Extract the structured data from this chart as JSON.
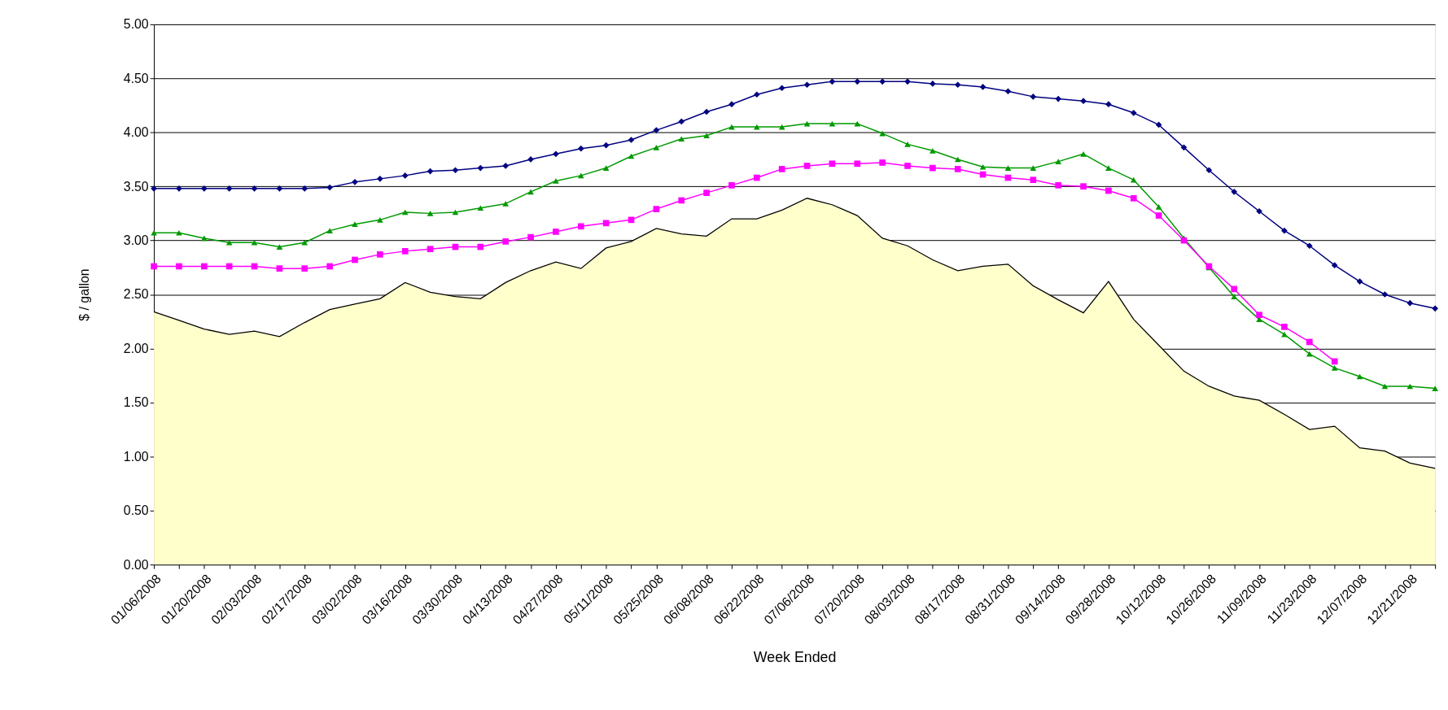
{
  "chart_data": {
    "type": "line",
    "xlabel": "Week Ended",
    "ylabel": "$ / gallon",
    "categories": [
      "01/06/2008",
      null,
      "01/20/2008",
      null,
      "02/03/2008",
      null,
      "02/17/2008",
      null,
      "03/02/2008",
      null,
      "03/16/2008",
      null,
      "03/30/2008",
      null,
      "04/13/2008",
      null,
      "04/27/2008",
      null,
      "05/11/2008",
      null,
      "05/25/2008",
      null,
      "06/08/2008",
      null,
      "06/22/2008",
      null,
      "07/06/2008",
      null,
      "07/20/2008",
      null,
      "08/03/2008",
      null,
      "08/17/2008",
      null,
      "08/31/2008",
      null,
      "09/14/2008",
      null,
      "09/28/2008",
      null,
      "10/12/2008",
      null,
      "10/26/2008",
      null,
      "11/09/2008",
      null,
      "11/23/2008",
      null,
      "12/07/2008",
      null,
      "12/21/2008",
      null
    ],
    "series": [
      {
        "type": "area",
        "color": "#ffffcc",
        "marker": "none",
        "values": [
          2.34,
          2.26,
          2.18,
          2.13,
          2.16,
          2.11,
          2.24,
          2.36,
          2.41,
          2.46,
          2.61,
          2.52,
          2.48,
          2.46,
          2.61,
          2.72,
          2.8,
          2.74,
          2.93,
          2.99,
          3.11,
          3.06,
          3.04,
          3.2,
          3.2,
          3.28,
          3.39,
          3.33,
          3.23,
          3.02,
          2.95,
          2.82,
          2.72,
          2.76,
          2.78,
          2.58,
          2.45,
          2.33,
          2.62,
          2.27,
          2.03,
          1.79,
          1.65,
          1.56,
          1.52,
          1.39,
          1.25,
          1.28,
          1.08,
          1.05,
          0.94,
          0.89
        ]
      },
      {
        "color": "#000080",
        "marker": "diamond",
        "values": [
          3.48,
          3.48,
          3.48,
          3.48,
          3.48,
          3.48,
          3.48,
          3.49,
          3.54,
          3.57,
          3.6,
          3.64,
          3.65,
          3.67,
          3.69,
          3.75,
          3.8,
          3.85,
          3.88,
          3.93,
          4.02,
          4.1,
          4.19,
          4.26,
          4.35,
          4.41,
          4.44,
          4.47,
          4.47,
          4.47,
          4.47,
          4.45,
          4.44,
          4.42,
          4.38,
          4.33,
          4.31,
          4.29,
          4.26,
          4.18,
          4.07,
          3.86,
          3.65,
          3.45,
          3.27,
          3.09,
          2.95,
          2.77,
          2.62,
          2.5,
          2.42,
          2.37
        ]
      },
      {
        "color": "#009900",
        "marker": "triangle",
        "values": [
          3.07,
          3.07,
          3.02,
          2.98,
          2.98,
          2.94,
          2.98,
          3.09,
          3.15,
          3.19,
          3.26,
          3.25,
          3.26,
          3.3,
          3.34,
          3.45,
          3.55,
          3.6,
          3.67,
          3.78,
          3.86,
          3.94,
          3.97,
          4.05,
          4.05,
          4.05,
          4.08,
          4.08,
          4.08,
          3.99,
          3.89,
          3.83,
          3.75,
          3.68,
          3.67,
          3.67,
          3.73,
          3.8,
          3.67,
          3.56,
          3.31,
          3.02,
          2.75,
          2.48,
          2.27,
          2.13,
          1.95,
          1.82,
          1.74,
          1.65,
          1.65,
          1.63
        ]
      },
      {
        "color": "#ff00ff",
        "marker": "square",
        "values": [
          2.76,
          2.76,
          2.76,
          2.76,
          2.76,
          2.74,
          2.74,
          2.76,
          2.82,
          2.87,
          2.9,
          2.92,
          2.94,
          2.94,
          2.99,
          3.03,
          3.08,
          3.13,
          3.16,
          3.19,
          3.29,
          3.37,
          3.44,
          3.51,
          3.58,
          3.66,
          3.69,
          3.71,
          3.71,
          3.72,
          3.69,
          3.67,
          3.66,
          3.61,
          3.58,
          3.56,
          3.51,
          3.5,
          3.46,
          3.39,
          3.23,
          3.0,
          2.76,
          2.55,
          2.31,
          2.2,
          2.06,
          1.88,
          null,
          null,
          null,
          null
        ]
      }
    ],
    "ylim": [
      0,
      5
    ],
    "yticks": [
      {
        "value": 0,
        "label": "0.00"
      },
      {
        "value": 0.5,
        "label": "0.50"
      },
      {
        "value": 1,
        "label": "1.00"
      },
      {
        "value": 1.5,
        "label": "1.50"
      },
      {
        "value": 2,
        "label": "2.00"
      },
      {
        "value": 2.5,
        "label": "2.50"
      },
      {
        "value": 3,
        "label": "3.00"
      },
      {
        "value": 3.5,
        "label": "3.50"
      },
      {
        "value": 4,
        "label": "4.00"
      },
      {
        "value": 4.5,
        "label": "4.50"
      },
      {
        "value": 5,
        "label": "5.00"
      }
    ],
    "grid": "y"
  }
}
